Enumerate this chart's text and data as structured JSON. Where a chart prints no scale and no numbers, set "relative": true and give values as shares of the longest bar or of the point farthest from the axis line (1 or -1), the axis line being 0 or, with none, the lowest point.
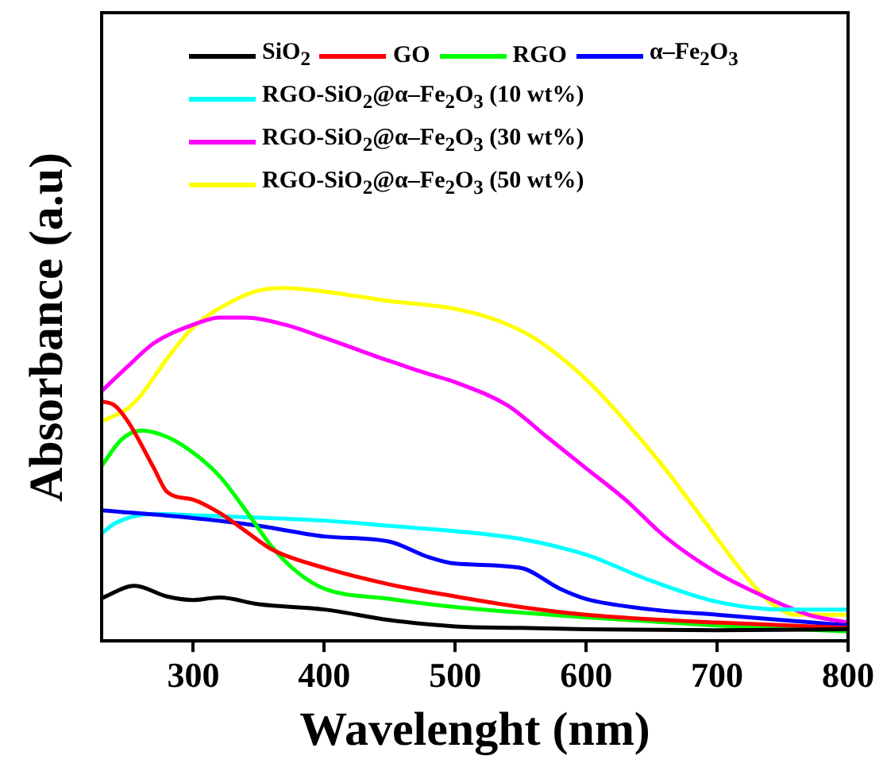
{
  "chart_data": {
    "type": "line",
    "xlabel": "Wavelenght (nm)",
    "ylabel": "Absorbance (a.u)",
    "relative": true,
    "tick_labels": "x",
    "legend": "top",
    "marker": "none",
    "line_style": "solid",
    "grid": false,
    "xlim": [
      230,
      800
    ],
    "xticks": [
      300,
      400,
      500,
      600,
      700,
      800
    ],
    "series": [
      {
        "name": "SiO$_{2}$",
        "color": "#000000",
        "x": [
          230,
          255,
          280,
          300,
          320,
          350,
          400,
          450,
          500,
          550,
          600,
          700,
          800
        ],
        "values": [
          0.121,
          0.156,
          0.126,
          0.116,
          0.123,
          0.104,
          0.089,
          0.059,
          0.041,
          0.037,
          0.033,
          0.03,
          0.033
        ]
      },
      {
        "name": "GO",
        "color": "#ff0000",
        "x": [
          230,
          240,
          250,
          270,
          280,
          300,
          320,
          340,
          360,
          400,
          450,
          500,
          550,
          600,
          700,
          800
        ],
        "values": [
          0.679,
          0.667,
          0.622,
          0.489,
          0.422,
          0.4,
          0.363,
          0.311,
          0.259,
          0.207,
          0.16,
          0.126,
          0.096,
          0.074,
          0.052,
          0.037
        ]
      },
      {
        "name": "RGO",
        "color": "#00ff00",
        "x": [
          230,
          245,
          260,
          280,
          300,
          320,
          340,
          360,
          380,
          400,
          450,
          500,
          600,
          700,
          800
        ],
        "values": [
          0.496,
          0.57,
          0.596,
          0.578,
          0.533,
          0.467,
          0.37,
          0.267,
          0.193,
          0.148,
          0.119,
          0.096,
          0.067,
          0.044,
          0.027
        ]
      },
      {
        "name": "α–Fe$_{2}$O$_{3}$",
        "color": "#0000ff",
        "x": [
          230,
          300,
          350,
          400,
          450,
          480,
          500,
          550,
          580,
          600,
          650,
          700,
          750,
          800
        ],
        "values": [
          0.37,
          0.348,
          0.326,
          0.296,
          0.281,
          0.237,
          0.219,
          0.207,
          0.148,
          0.119,
          0.089,
          0.074,
          0.059,
          0.044
        ]
      },
      {
        "name": "RGO-SiO$_{2}$@α–Fe$_{2}$O$_{3}$ (10 wt%)",
        "color": "#00ffff",
        "x": [
          230,
          240,
          270,
          300,
          400,
          450,
          500,
          550,
          600,
          650,
          700,
          750,
          800
        ],
        "values": [
          0.304,
          0.333,
          0.36,
          0.356,
          0.341,
          0.326,
          0.311,
          0.289,
          0.244,
          0.17,
          0.111,
          0.089,
          0.089
        ]
      },
      {
        "name": "RGO-SiO$_{2}$@α–Fe$_{2}$O$_{3}$ (30 wt%)",
        "color": "#ff00ff",
        "x": [
          230,
          250,
          270,
          300,
          320,
          340,
          370,
          400,
          450,
          480,
          500,
          540,
          570,
          600,
          630,
          660,
          700,
          740,
          770,
          800
        ],
        "values": [
          0.708,
          0.778,
          0.844,
          0.896,
          0.916,
          0.916,
          0.896,
          0.859,
          0.793,
          0.756,
          0.733,
          0.667,
          0.578,
          0.489,
          0.4,
          0.296,
          0.193,
          0.119,
          0.074,
          0.052
        ]
      },
      {
        "name": "RGO-SiO$_{2}$@α–Fe$_{2}$O$_{3}$ (50 wt%)",
        "color": "#ffff00",
        "x": [
          230,
          250,
          260,
          280,
          300,
          330,
          350,
          370,
          400,
          450,
          500,
          530,
          560,
          600,
          630,
          660,
          690,
          720,
          740,
          760,
          780,
          800
        ],
        "values": [
          0.622,
          0.659,
          0.696,
          0.8,
          0.889,
          0.963,
          0.993,
          1,
          0.99,
          0.963,
          0.941,
          0.911,
          0.859,
          0.741,
          0.622,
          0.489,
          0.341,
          0.193,
          0.111,
          0.074,
          0.074,
          0.074
        ]
      }
    ]
  }
}
